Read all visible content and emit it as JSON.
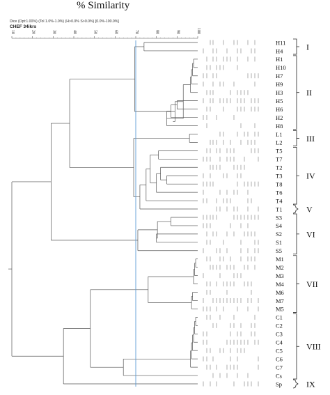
{
  "header": {
    "title": "% Similarity",
    "settings_text": "Dice (Opt:1.00%) (Tol 1.0%-1.0%) (H>0.0% S>0.0%) [0.0%-100.0%]",
    "gel_label": "CHEF 34ikrs"
  },
  "scale": {
    "ticks": [
      "10",
      "20",
      "30",
      "40",
      "50",
      "60",
      "70",
      "80",
      "90",
      "100"
    ],
    "cutoff_value": 70
  },
  "colors": {
    "cutoff_line": "#5b9bd5",
    "tree": "#555555",
    "bands": "#8a8a8a"
  },
  "isolates": [
    "H11",
    "H4",
    "H1",
    "H10",
    "H7",
    "H9",
    "H3",
    "H5",
    "H6",
    "H2",
    "H8",
    "L1",
    "L2",
    "T5",
    "T7",
    "T2",
    "T3",
    "T8",
    "T6",
    "T4",
    "T1",
    "S3",
    "S4",
    "S2",
    "S1",
    "S5",
    "M1",
    "M2",
    "M3",
    "M4",
    "M6",
    "M7",
    "M5",
    "C1",
    "C2",
    "C3",
    "C4",
    "C5",
    "C6",
    "C7",
    "Cs",
    "Sp"
  ],
  "groups": [
    {
      "label": "I",
      "first": 0,
      "last": 1
    },
    {
      "label": "II",
      "first": 2,
      "last": 10
    },
    {
      "label": "III",
      "first": 11,
      "last": 12
    },
    {
      "label": "IV",
      "first": 13,
      "last": 19
    },
    {
      "label": "V",
      "first": 20,
      "last": 20
    },
    {
      "label": "VI",
      "first": 21,
      "last": 25
    },
    {
      "label": "VII",
      "first": 26,
      "last": 32
    },
    {
      "label": "VIII",
      "first": 33,
      "last": 40
    },
    {
      "label": "IX",
      "first": 41,
      "last": 41
    }
  ]
}
